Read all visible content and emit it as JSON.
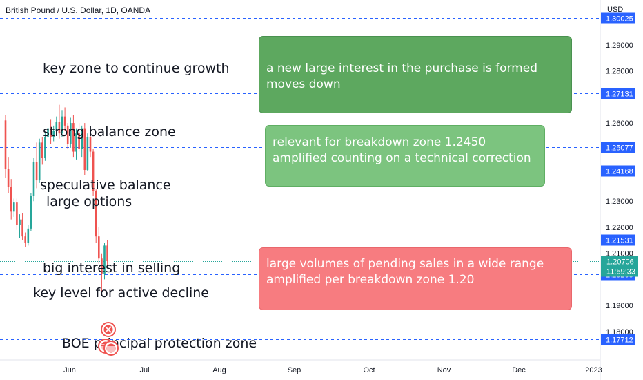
{
  "header": {
    "title": "British Pound / U.S. Dollar, 1D, OANDA"
  },
  "axis": {
    "unit": "USD"
  },
  "colors": {
    "up": "#26a69a",
    "down": "#ef5350",
    "level_line": "#2962ff",
    "current_line": "#26a69a",
    "note_dark_green": "#5da85f",
    "note_light_green": "#7cc47f",
    "note_red": "#f77c80"
  },
  "annotations": {
    "key_zone": "key zone to continue growth",
    "strong_balance": "strong balance zone",
    "speculative_balance": "speculative balance",
    "large_options": "large options",
    "big_interest": "big interest in selling",
    "key_level": "key level for active decline",
    "boe": "BOE principal protection zone"
  },
  "notes": {
    "top_line1": "a new large interest in the purchase is formed",
    "top_line2": "moves down",
    "mid_line1": "relevant for breakdown zone 1.2450",
    "mid_line2": "amplified counting on a technical correction",
    "bottom_line1": "large volumes of pending sales in a wide range",
    "bottom_line2": "amplified per breakdown zone 1.20"
  },
  "chart_data": {
    "type": "candlestick",
    "title": "British Pound / U.S. Dollar, 1D, OANDA",
    "y_unit": "USD",
    "ylim": [
      1.1691,
      1.3072
    ],
    "y_ticks": [
      "1.29000",
      "1.28000",
      "1.26000",
      "1.23000",
      "1.22000",
      "1.21000",
      "1.19000",
      "1.18000"
    ],
    "x_ticks": [
      "Jun",
      "Jul",
      "Aug",
      "Sep",
      "Oct",
      "Nov",
      "Dec",
      "2023"
    ],
    "price_levels": [
      {
        "label": "1.30025",
        "value": 1.30025
      },
      {
        "label": "1.27131",
        "value": 1.27131
      },
      {
        "label": "1.25077",
        "value": 1.25077
      },
      {
        "label": "1.24168",
        "value": 1.24168
      },
      {
        "label": "1.21531",
        "value": 1.21531
      },
      {
        "label": "1.20205",
        "value": 1.20205
      },
      {
        "label": "1.17712",
        "value": 1.17712
      }
    ],
    "current_price": {
      "value": 1.20706,
      "label": "1.20706",
      "countdown": "11:59:33"
    },
    "candles": [
      [
        1.261,
        1.2632,
        1.239,
        1.2425
      ],
      [
        1.2425,
        1.247,
        1.233,
        1.2355
      ],
      [
        1.2355,
        1.2385,
        1.223,
        1.226
      ],
      [
        1.226,
        1.231,
        1.224,
        1.2295
      ],
      [
        1.2295,
        1.231,
        1.219,
        1.221
      ],
      [
        1.221,
        1.225,
        1.216,
        1.223
      ],
      [
        1.223,
        1.2255,
        1.215,
        1.2165
      ],
      [
        1.2165,
        1.218,
        1.2125,
        1.214
      ],
      [
        1.214,
        1.221,
        1.213,
        1.2195
      ],
      [
        1.2195,
        1.233,
        1.2185,
        1.232
      ],
      [
        1.232,
        1.2465,
        1.23,
        1.245
      ],
      [
        1.245,
        1.2525,
        1.235,
        1.238
      ],
      [
        1.238,
        1.254,
        1.237,
        1.2525
      ],
      [
        1.2525,
        1.2545,
        1.244,
        1.2465
      ],
      [
        1.2465,
        1.256,
        1.2455,
        1.2545
      ],
      [
        1.2545,
        1.2598,
        1.25,
        1.258
      ],
      [
        1.258,
        1.2615,
        1.252,
        1.2545
      ],
      [
        1.2545,
        1.259,
        1.253,
        1.257
      ],
      [
        1.257,
        1.2625,
        1.2555,
        1.2605
      ],
      [
        1.2605,
        1.267,
        1.254,
        1.256
      ],
      [
        1.256,
        1.265,
        1.2545,
        1.2625
      ],
      [
        1.2625,
        1.266,
        1.257,
        1.259
      ],
      [
        1.259,
        1.26,
        1.25,
        1.252
      ],
      [
        1.252,
        1.262,
        1.2505,
        1.26
      ],
      [
        1.26,
        1.263,
        1.247,
        1.249
      ],
      [
        1.249,
        1.258,
        1.246,
        1.256
      ],
      [
        1.256,
        1.26,
        1.249,
        1.25
      ],
      [
        1.25,
        1.259,
        1.247,
        1.258
      ],
      [
        1.258,
        1.26,
        1.24,
        1.242
      ],
      [
        1.242,
        1.256,
        1.2415,
        1.2545
      ],
      [
        1.2545,
        1.2555,
        1.247,
        1.249
      ],
      [
        1.249,
        1.25,
        1.232,
        1.234
      ],
      [
        1.234,
        1.2345,
        1.214,
        1.2165
      ],
      [
        1.2165,
        1.22,
        1.206,
        1.208
      ],
      [
        1.208,
        1.21,
        1.1935,
        1.202
      ],
      [
        1.202,
        1.214,
        1.2,
        1.213
      ],
      [
        1.213,
        1.215,
        1.205,
        1.207
      ]
    ]
  }
}
